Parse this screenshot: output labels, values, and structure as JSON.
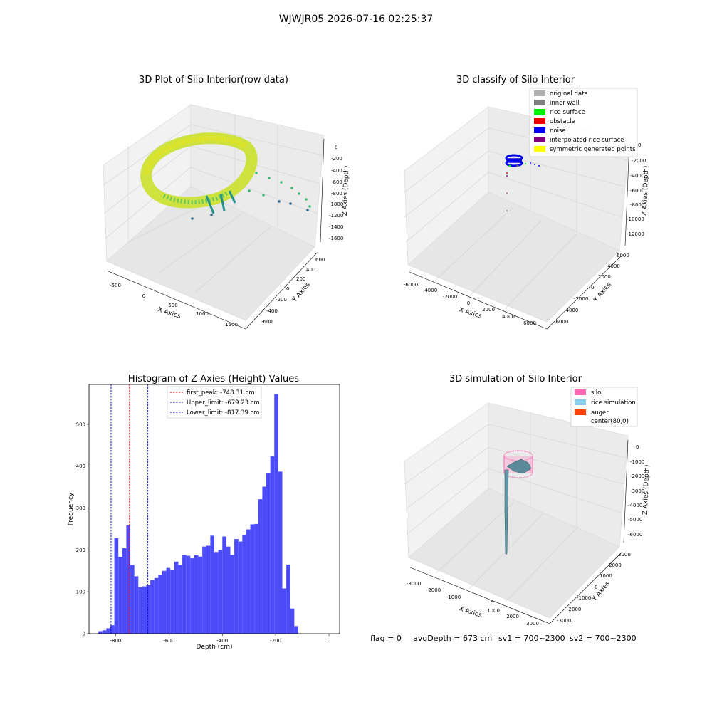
{
  "figure": {
    "suptitle": "WJWJR05 2026-07-16 02:25:37",
    "footer": {
      "flag": "flag = 0",
      "avg_depth": "avgDepth = 673 cm",
      "sv1": "sv1 = 700~2300",
      "sv2": "sv2 = 700~2300"
    }
  },
  "chart_data": [
    {
      "type": "scatter",
      "projection": "3d",
      "title": "3D Plot of Silo Interior(row data)",
      "xlabel": "X Axies",
      "ylabel": "Y Axies",
      "zlabel": "Z Axies (Depth)",
      "x_ticks": [
        "-500",
        "0",
        "500",
        "1000",
        "1500"
      ],
      "y_ticks": [
        "-600",
        "-400",
        "-200",
        "0",
        "200",
        "400",
        "600"
      ],
      "z_ticks": [
        "0",
        "-200",
        "-400",
        "-600",
        "-800",
        "-1000",
        "-1200",
        "-1400",
        "-1600"
      ],
      "colormap": "viridis",
      "grid": true
    },
    {
      "type": "scatter",
      "projection": "3d",
      "title": "3D classify of Silo Interior",
      "xlabel": "X Axies",
      "ylabel": "Y Axies",
      "zlabel": "Z Axies (Depth)",
      "x_ticks": [
        "-6000",
        "-4000",
        "-2000",
        "0",
        "2000",
        "4000",
        "6000"
      ],
      "y_ticks": [
        "-6000",
        "-4000",
        "-2000",
        "0",
        "2000",
        "4000",
        "6000"
      ],
      "z_ticks": [
        "0",
        "-2000",
        "-4000",
        "-6000",
        "-8000",
        "-10000",
        "-12000"
      ],
      "legend_position": "top-right",
      "legend": [
        {
          "label": "original data",
          "color": "#b0b0b0"
        },
        {
          "label": "inner wall",
          "color": "#808080"
        },
        {
          "label": "rice surface",
          "color": "#00ee00"
        },
        {
          "label": "obstacle",
          "color": "#ee0000"
        },
        {
          "label": "noise",
          "color": "#0000ee"
        },
        {
          "label": "interpolated rice surface",
          "color": "#800080"
        },
        {
          "label": "symmetric generated points",
          "color": "#ffff00"
        }
      ],
      "grid": true
    },
    {
      "type": "bar",
      "title": "Histogram of Z-Axies (Height) Values",
      "xlabel": "Depth (cm)",
      "ylabel": "Frequency",
      "xlim": [
        -900,
        40
      ],
      "ylim": [
        0,
        595
      ],
      "x_ticks": [
        -800,
        -600,
        -400,
        -200,
        0
      ],
      "y_ticks": [
        0,
        100,
        200,
        300,
        400,
        500
      ],
      "bar_color": "#4b4bfa",
      "bin_width": 15,
      "bin_starts": [
        -865,
        -850,
        -835,
        -820,
        -805,
        -790,
        -775,
        -760,
        -745,
        -730,
        -715,
        -700,
        -685,
        -670,
        -655,
        -640,
        -625,
        -610,
        -595,
        -580,
        -565,
        -550,
        -535,
        -520,
        -505,
        -490,
        -475,
        -460,
        -445,
        -430,
        -415,
        -400,
        -385,
        -370,
        -355,
        -340,
        -325,
        -310,
        -295,
        -280,
        -265,
        -250,
        -235,
        -220,
        -205,
        -190,
        -175,
        -160,
        -145,
        -130,
        -115,
        -100,
        -85,
        -70,
        -55,
        -40,
        -25,
        -10
      ],
      "values": [
        6,
        8,
        13,
        20,
        228,
        183,
        204,
        259,
        164,
        137,
        111,
        113,
        116,
        128,
        133,
        140,
        150,
        157,
        153,
        172,
        164,
        188,
        186,
        180,
        187,
        184,
        208,
        210,
        234,
        195,
        200,
        232,
        208,
        188,
        226,
        220,
        236,
        249,
        261,
        262,
        321,
        351,
        384,
        424,
        572,
        387,
        108,
        165,
        60,
        18,
        0,
        0,
        0,
        0,
        0,
        0,
        0,
        0
      ],
      "legend_position": "top-center",
      "vlines": [
        {
          "label": "first_peak: -748.31 cm",
          "x": -748.31,
          "color": "#ff0000",
          "style": "dashed"
        },
        {
          "label": "Upper_limit: -679.23 cm",
          "x": -679.23,
          "color": "#0000cc",
          "style": "dashed"
        },
        {
          "label": "Lower_limit: -817.39 cm",
          "x": -817.39,
          "color": "#0000cc",
          "style": "dashed"
        }
      ],
      "grid": false
    },
    {
      "type": "surface",
      "projection": "3d",
      "title": "3D simulation of Silo Interior",
      "xlabel": "X Axies",
      "ylabel": "Y Axies",
      "zlabel": "Z Axies (Depth)",
      "x_ticks": [
        "-3000",
        "-2000",
        "-1000",
        "0",
        "1000",
        "2000",
        "3000"
      ],
      "y_ticks": [
        "-3000",
        "-2000",
        "-1000",
        "0",
        "1000",
        "2000",
        "3000"
      ],
      "z_ticks": [
        "0",
        "-1000",
        "-2000",
        "-3000",
        "-4000",
        "-5000",
        "-6000"
      ],
      "legend_position": "top-right",
      "legend": [
        {
          "label": "silo",
          "color": "#ff69b4"
        },
        {
          "label": "rice simulation",
          "color": "#87ceeb"
        },
        {
          "label": "auger",
          "color": "#ff4500"
        },
        {
          "label": "center(80,0)",
          "color": ""
        }
      ],
      "grid": true
    }
  ]
}
